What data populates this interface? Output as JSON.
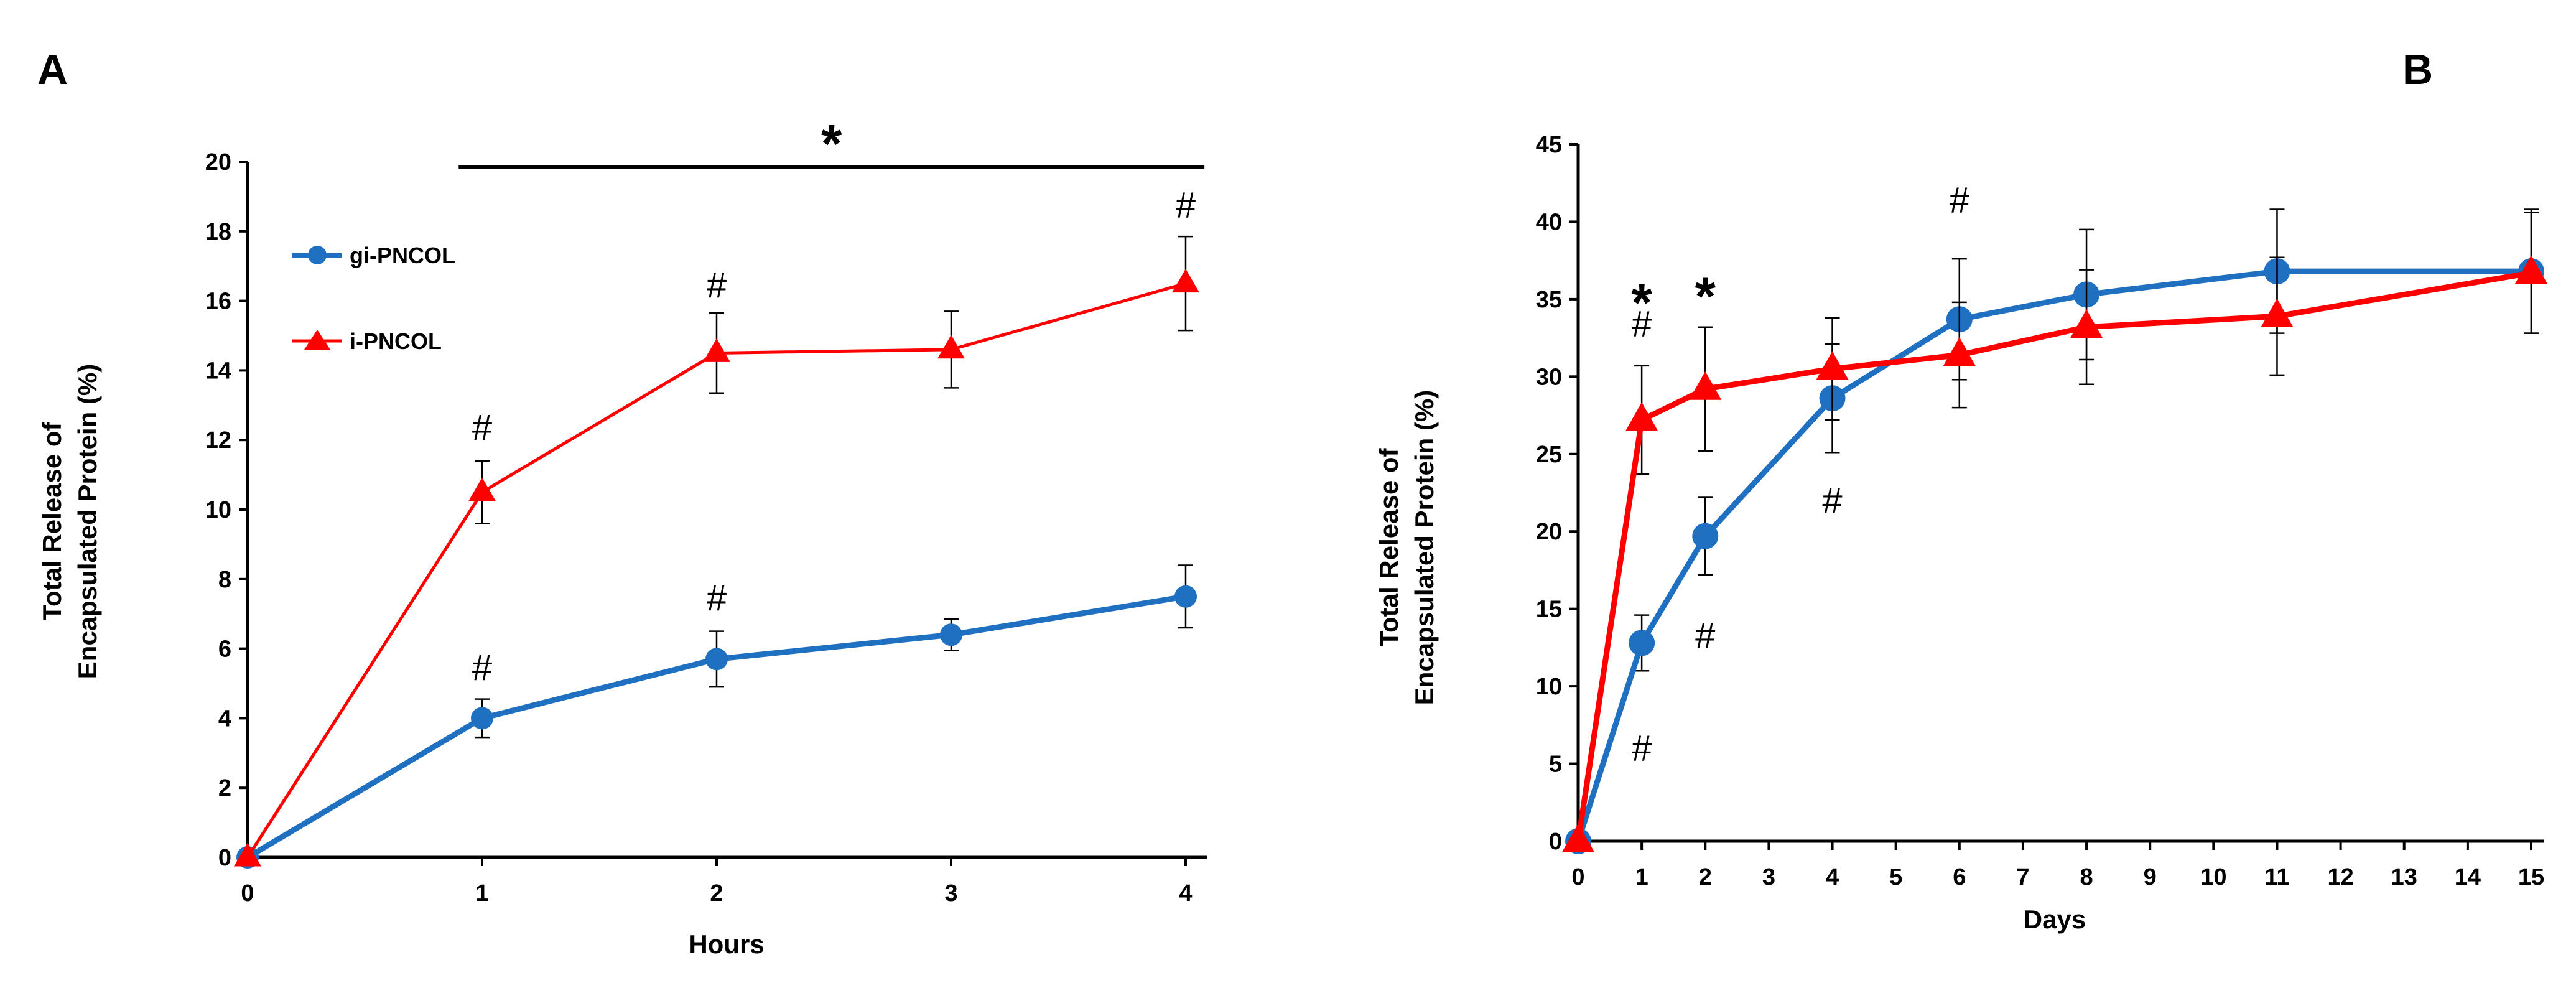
{
  "chart_data": [
    {
      "panel": "A",
      "type": "line",
      "xlabel": "Hours",
      "ylabel_line1": "Total Release of",
      "ylabel_line2": "Encapsulated Protein (%)",
      "x": [
        0,
        1,
        2,
        3,
        4
      ],
      "xticks": [
        "0",
        "1",
        "2",
        "3",
        "4"
      ],
      "ylim": [
        0,
        20
      ],
      "yticks": [
        "0",
        "2",
        "4",
        "6",
        "8",
        "10",
        "12",
        "14",
        "16",
        "18",
        "20"
      ],
      "legend_position": "top-left",
      "series": [
        {
          "name": "gi-PNCOL",
          "color": "#1f70c1",
          "marker": "circle",
          "values": [
            0,
            4.0,
            5.7,
            6.4,
            7.5
          ],
          "errors": [
            0,
            0.55,
            0.8,
            0.45,
            0.9
          ]
        },
        {
          "name": "i-PNCOL",
          "color": "#ff0000",
          "marker": "triangle",
          "values": [
            0,
            10.5,
            14.5,
            14.6,
            16.5
          ],
          "errors": [
            0,
            0.9,
            1.15,
            1.1,
            1.35
          ]
        }
      ],
      "annotations": [
        {
          "text": "#",
          "x": 1,
          "y": 12.0
        },
        {
          "text": "#",
          "x": 2,
          "y": 16.1
        },
        {
          "text": "#",
          "x": 4,
          "y": 18.4
        },
        {
          "text": "#",
          "x": 1,
          "y": 5.1
        },
        {
          "text": "#",
          "x": 2,
          "y": 7.1
        }
      ],
      "significance_bar": {
        "label": "*",
        "x_from": 0.9,
        "x_to": 4.08,
        "y": 19.85
      }
    },
    {
      "panel": "B",
      "type": "line",
      "xlabel": "Days",
      "ylabel_line1": "Total Release of",
      "ylabel_line2": "Encapsulated Protein (%)",
      "x": [
        0,
        1,
        2,
        4,
        6,
        8,
        11,
        15
      ],
      "xticks": [
        "0",
        "1",
        "2",
        "3",
        "4",
        "5",
        "6",
        "7",
        "8",
        "9",
        "10",
        "11",
        "12",
        "13",
        "14",
        "15"
      ],
      "ylim": [
        0,
        45
      ],
      "yticks": [
        "0",
        "5",
        "10",
        "15",
        "20",
        "25",
        "30",
        "35",
        "40",
        "45"
      ],
      "series": [
        {
          "name": "gi-PNCOL",
          "color": "#1f70c1",
          "marker": "circle",
          "values": [
            0,
            12.8,
            19.7,
            28.6,
            33.7,
            35.3,
            36.8,
            36.8
          ],
          "errors": [
            0,
            1.8,
            2.5,
            3.5,
            3.9,
            4.2,
            4.0,
            4.0
          ]
        },
        {
          "name": "i-PNCOL",
          "color": "#ff0000",
          "marker": "triangle",
          "values": [
            0,
            27.2,
            29.2,
            30.5,
            31.4,
            33.2,
            33.9,
            36.7
          ],
          "errors": [
            0,
            3.5,
            4.0,
            3.3,
            3.4,
            3.7,
            3.8,
            3.9
          ]
        }
      ],
      "annotations": [
        {
          "text": "#",
          "x": 1,
          "y": 5.2
        },
        {
          "text": "#",
          "x": 2,
          "y": 12.5
        },
        {
          "text": "#",
          "x": 4,
          "y": 21.2
        },
        {
          "text": "#",
          "x": 1,
          "y": 32.6
        },
        {
          "text": "#",
          "x": 6,
          "y": 40.6
        }
      ],
      "stars": [
        {
          "text": "*",
          "x": 1,
          "y": 35.2
        },
        {
          "text": "*",
          "x": 2,
          "y": 35.6
        }
      ]
    }
  ]
}
